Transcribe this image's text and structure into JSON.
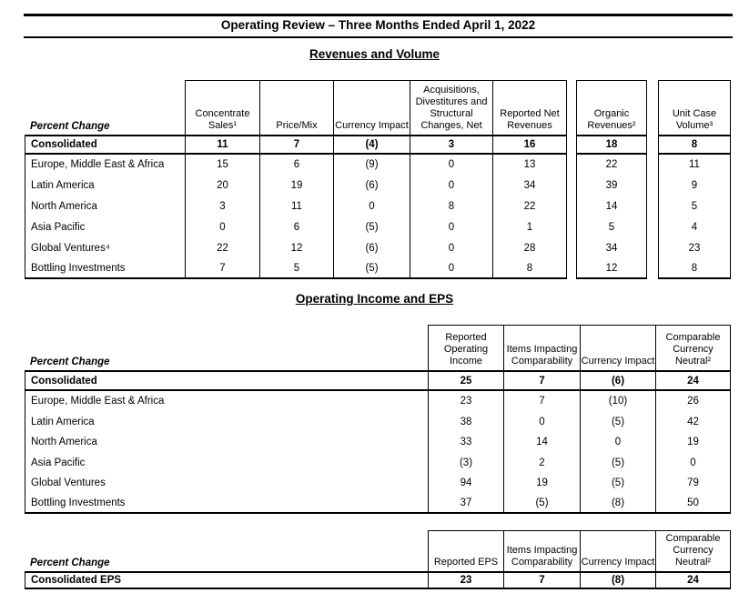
{
  "colors": {
    "text": "#000000",
    "background": "#ffffff"
  },
  "doc_title": "Operating Review – Three Months Ended April 1, 2022",
  "revenues": {
    "heading": "Revenues and Volume",
    "label_header": "Percent Change",
    "columns": [
      "Concentrate Sales¹",
      "Price/Mix",
      "Currency Impact",
      "Acquisitions, Divestitures and Structural Changes, Net",
      "Reported Net Revenues",
      "Organic Revenues²",
      "Unit Case Volume³"
    ],
    "consolidated": {
      "label": "Consolidated",
      "values": [
        "11",
        "7",
        "(4)",
        "3",
        "16",
        "18",
        "8"
      ]
    },
    "rows": [
      {
        "label": "Europe, Middle East & Africa",
        "values": [
          "15",
          "6",
          "(9)",
          "0",
          "13",
          "22",
          "11"
        ]
      },
      {
        "label": "Latin America",
        "values": [
          "20",
          "19",
          "(6)",
          "0",
          "34",
          "39",
          "9"
        ]
      },
      {
        "label": "North America",
        "values": [
          "3",
          "11",
          "0",
          "8",
          "22",
          "14",
          "5"
        ]
      },
      {
        "label": "Asia Pacific",
        "values": [
          "0",
          "6",
          "(5)",
          "0",
          "1",
          "5",
          "4"
        ]
      },
      {
        "label": "Global Ventures⁴",
        "values": [
          "22",
          "12",
          "(6)",
          "0",
          "28",
          "34",
          "23"
        ]
      },
      {
        "label": "Bottling Investments",
        "values": [
          "7",
          "5",
          "(5)",
          "0",
          "8",
          "12",
          "8"
        ]
      }
    ]
  },
  "operating": {
    "heading": "Operating Income and EPS",
    "label_header": "Percent Change",
    "columns": [
      "Reported Operating Income",
      "Items Impacting Comparability",
      "Currency Impact",
      "Comparable Currency Neutral²"
    ],
    "consolidated": {
      "label": "Consolidated",
      "values": [
        "25",
        "7",
        "(6)",
        "24"
      ]
    },
    "rows": [
      {
        "label": "Europe, Middle East & Africa",
        "values": [
          "23",
          "7",
          "(10)",
          "26"
        ]
      },
      {
        "label": "Latin America",
        "values": [
          "38",
          "0",
          "(5)",
          "42"
        ]
      },
      {
        "label": "North America",
        "values": [
          "33",
          "14",
          "0",
          "19"
        ]
      },
      {
        "label": "Asia Pacific",
        "values": [
          "(3)",
          "2",
          "(5)",
          "0"
        ]
      },
      {
        "label": "Global Ventures",
        "values": [
          "94",
          "19",
          "(5)",
          "79"
        ]
      },
      {
        "label": "Bottling Investments",
        "values": [
          "37",
          "(5)",
          "(8)",
          "50"
        ]
      }
    ]
  },
  "eps": {
    "label_header": "Percent Change",
    "columns": [
      "Reported EPS",
      "Items Impacting Comparability",
      "Currency Impact",
      "Comparable Currency Neutral²"
    ],
    "consolidated": {
      "label": "Consolidated EPS",
      "values": [
        "23",
        "7",
        "(8)",
        "24"
      ]
    }
  }
}
